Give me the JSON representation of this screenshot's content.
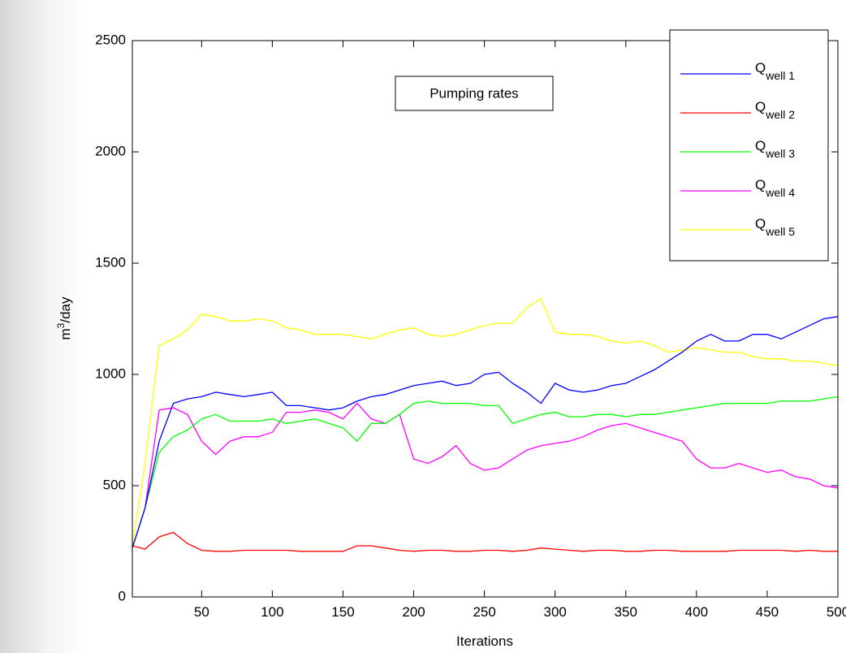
{
  "chart_data": {
    "type": "line",
    "annotation": "Pumping rates",
    "x_label": "Iterations",
    "y_label": "m3/day",
    "x": [
      1,
      10,
      20,
      30,
      40,
      50,
      60,
      70,
      80,
      90,
      100,
      110,
      120,
      130,
      140,
      150,
      160,
      170,
      180,
      190,
      200,
      210,
      220,
      230,
      240,
      250,
      260,
      270,
      280,
      290,
      300,
      310,
      320,
      330,
      340,
      350,
      360,
      370,
      380,
      390,
      400,
      410,
      420,
      430,
      440,
      450,
      460,
      470,
      480,
      490,
      500
    ],
    "xlim": [
      1,
      500
    ],
    "ylim": [
      0,
      2500
    ],
    "xticks": [
      50,
      100,
      150,
      200,
      250,
      300,
      350,
      400,
      450,
      500
    ],
    "yticks": [
      0,
      500,
      1000,
      1500,
      2000,
      2500
    ],
    "legend": "upper right",
    "series": [
      {
        "name": "Qwell 1",
        "color": "#0000ff",
        "values": [
          220,
          400,
          700,
          870,
          890,
          900,
          920,
          910,
          900,
          910,
          920,
          860,
          860,
          850,
          840,
          850,
          880,
          900,
          910,
          930,
          950,
          960,
          970,
          950,
          960,
          1000,
          1010,
          960,
          920,
          870,
          960,
          930,
          920,
          930,
          950,
          960,
          990,
          1020,
          1060,
          1100,
          1150,
          1180,
          1150,
          1150,
          1180,
          1180,
          1160,
          1190,
          1220,
          1250,
          1260
        ]
      },
      {
        "name": "Qwell 2",
        "color": "#ff0000",
        "values": [
          230,
          215,
          270,
          290,
          240,
          210,
          205,
          205,
          210,
          210,
          210,
          210,
          205,
          205,
          205,
          205,
          230,
          230,
          220,
          210,
          205,
          210,
          210,
          205,
          205,
          210,
          210,
          205,
          210,
          220,
          215,
          210,
          205,
          210,
          210,
          205,
          205,
          210,
          210,
          205,
          205,
          205,
          205,
          210,
          210,
          210,
          210,
          205,
          210,
          205,
          205
        ]
      },
      {
        "name": "Qwell 3",
        "color": "#00ff00",
        "values": [
          220,
          400,
          650,
          720,
          750,
          800,
          820,
          790,
          790,
          790,
          800,
          780,
          790,
          800,
          780,
          760,
          700,
          780,
          780,
          820,
          870,
          880,
          870,
          870,
          870,
          860,
          860,
          780,
          800,
          820,
          830,
          810,
          810,
          820,
          820,
          810,
          820,
          820,
          830,
          840,
          850,
          860,
          870,
          870,
          870,
          870,
          880,
          880,
          880,
          890,
          900
        ]
      },
      {
        "name": "Qwell 4",
        "color": "#ff00ff",
        "values": [
          220,
          400,
          840,
          850,
          820,
          700,
          640,
          700,
          720,
          720,
          740,
          830,
          830,
          840,
          830,
          800,
          870,
          800,
          780,
          820,
          620,
          600,
          630,
          680,
          600,
          570,
          580,
          620,
          660,
          680,
          690,
          700,
          720,
          750,
          770,
          780,
          760,
          740,
          720,
          700,
          620,
          580,
          580,
          600,
          580,
          560,
          570,
          540,
          530,
          500,
          490
        ]
      },
      {
        "name": "Qwell 5",
        "color": "#ffff00",
        "values": [
          230,
          600,
          1130,
          1160,
          1200,
          1270,
          1260,
          1240,
          1240,
          1250,
          1240,
          1210,
          1200,
          1180,
          1180,
          1180,
          1170,
          1160,
          1180,
          1200,
          1210,
          1180,
          1170,
          1180,
          1200,
          1220,
          1230,
          1230,
          1300,
          1340,
          1190,
          1180,
          1180,
          1170,
          1150,
          1140,
          1150,
          1130,
          1100,
          1110,
          1120,
          1110,
          1100,
          1100,
          1080,
          1070,
          1070,
          1060,
          1060,
          1050,
          1040
        ]
      }
    ]
  }
}
